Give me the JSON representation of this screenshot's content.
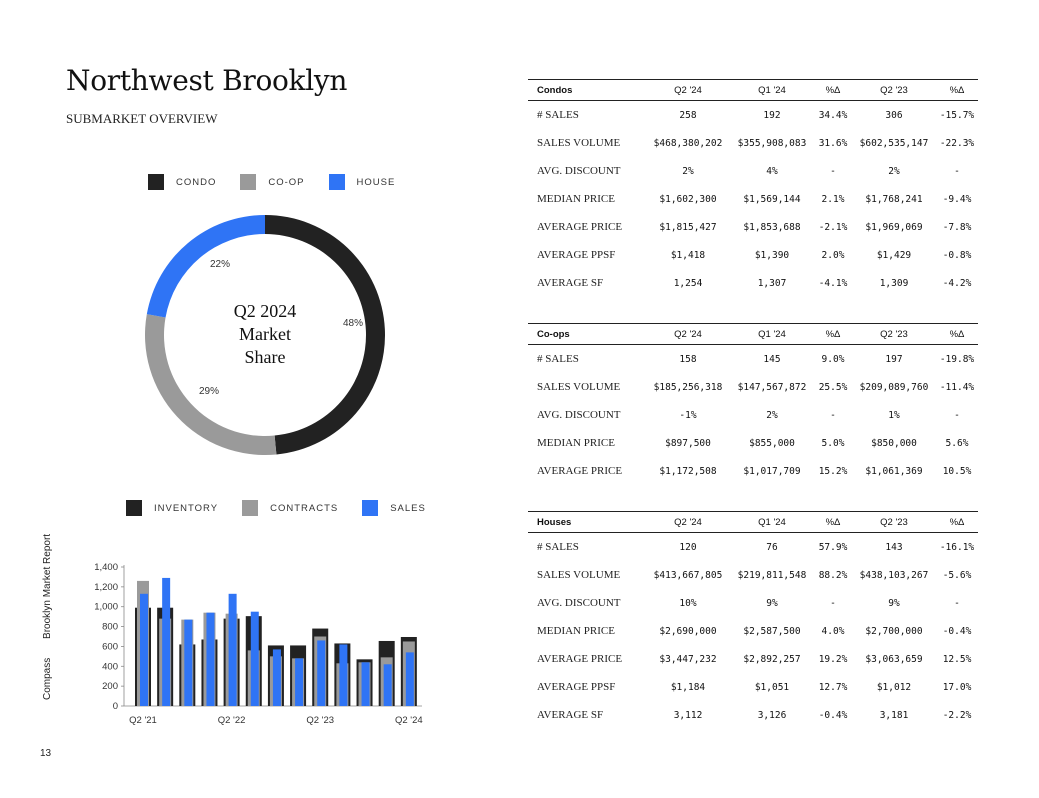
{
  "page": {
    "title": "Northwest Brooklyn",
    "subtitle": "SUBMARKET OVERVIEW",
    "page_number": "13",
    "side_brand": "Compass",
    "side_report": "Brooklyn Market Report"
  },
  "colors": {
    "condo": "#222222",
    "coop": "#9a9a9a",
    "house": "#2f74f5"
  },
  "pie_legend": [
    "CONDO",
    "CO-OP",
    "HOUSE"
  ],
  "bar_legend": [
    "INVENTORY",
    "CONTRACTS",
    "SALES"
  ],
  "chart_data": [
    {
      "type": "pie",
      "title": "Q2 2024 Market Share",
      "title_lines": [
        "Q2 2024",
        "Market",
        "Share"
      ],
      "categories": [
        "CONDO",
        "CO-OP",
        "HOUSE"
      ],
      "values": [
        48,
        29,
        22
      ],
      "labels": [
        "48%",
        "29%",
        "22%"
      ]
    },
    {
      "type": "bar",
      "categories": [
        "Q2 '21",
        "Q3 '21",
        "Q4 '21",
        "Q1 '22",
        "Q2 '22",
        "Q3 '22",
        "Q4 '22",
        "Q1 '23",
        "Q2 '23",
        "Q3 '23",
        "Q4 '23",
        "Q1 '24",
        "Q2 '24"
      ],
      "xtick_labels": [
        "Q2 '21",
        "Q2 '22",
        "Q2 '23",
        "Q2 '24"
      ],
      "ylim": [
        0,
        1400
      ],
      "yticks": [
        "0",
        "200",
        "400",
        "600",
        "800",
        "1,000",
        "1,200",
        "1,400"
      ],
      "series": [
        {
          "name": "INVENTORY",
          "values": [
            990,
            990,
            620,
            670,
            880,
            905,
            610,
            610,
            780,
            630,
            470,
            655,
            695
          ]
        },
        {
          "name": "CONTRACTS",
          "values": [
            1260,
            880,
            870,
            940,
            930,
            560,
            500,
            480,
            700,
            430,
            440,
            490,
            650
          ]
        },
        {
          "name": "SALES",
          "values": [
            1130,
            1290,
            870,
            940,
            1130,
            950,
            570,
            480,
            660,
            620,
            440,
            420,
            540
          ]
        }
      ]
    }
  ],
  "tables": [
    {
      "name": "Condos",
      "columns": [
        "Q2 '24",
        "Q1 '24",
        "%Δ",
        "Q2 '23",
        "%Δ"
      ],
      "rows": [
        [
          "# SALES",
          "258",
          "192",
          "34.4%",
          "306",
          "-15.7%"
        ],
        [
          "SALES VOLUME",
          "$468,380,202",
          "$355,908,083",
          "31.6%",
          "$602,535,147",
          "-22.3%"
        ],
        [
          "AVG. DISCOUNT",
          "2%",
          "4%",
          "-",
          "2%",
          "-"
        ],
        [
          "MEDIAN PRICE",
          "$1,602,300",
          "$1,569,144",
          "2.1%",
          "$1,768,241",
          "-9.4%"
        ],
        [
          "AVERAGE PRICE",
          "$1,815,427",
          "$1,853,688",
          "-2.1%",
          "$1,969,069",
          "-7.8%"
        ],
        [
          "AVERAGE PPSF",
          "$1,418",
          "$1,390",
          "2.0%",
          "$1,429",
          "-0.8%"
        ],
        [
          "AVERAGE SF",
          "1,254",
          "1,307",
          "-4.1%",
          "1,309",
          "-4.2%"
        ]
      ]
    },
    {
      "name": "Co-ops",
      "columns": [
        "Q2 '24",
        "Q1 '24",
        "%Δ",
        "Q2 '23",
        "%Δ"
      ],
      "rows": [
        [
          "# SALES",
          "158",
          "145",
          "9.0%",
          "197",
          "-19.8%"
        ],
        [
          "SALES VOLUME",
          "$185,256,318",
          "$147,567,872",
          "25.5%",
          "$209,089,760",
          "-11.4%"
        ],
        [
          "AVG. DISCOUNT",
          "-1%",
          "2%",
          "-",
          "1%",
          "-"
        ],
        [
          "MEDIAN PRICE",
          "$897,500",
          "$855,000",
          "5.0%",
          "$850,000",
          "5.6%"
        ],
        [
          "AVERAGE PRICE",
          "$1,172,508",
          "$1,017,709",
          "15.2%",
          "$1,061,369",
          "10.5%"
        ]
      ]
    },
    {
      "name": "Houses",
      "columns": [
        "Q2 '24",
        "Q1 '24",
        "%Δ",
        "Q2 '23",
        "%Δ"
      ],
      "rows": [
        [
          "# SALES",
          "120",
          "76",
          "57.9%",
          "143",
          "-16.1%"
        ],
        [
          "SALES VOLUME",
          "$413,667,805",
          "$219,811,548",
          "88.2%",
          "$438,103,267",
          "-5.6%"
        ],
        [
          "AVG. DISCOUNT",
          "10%",
          "9%",
          "-",
          "9%",
          "-"
        ],
        [
          "MEDIAN PRICE",
          "$2,690,000",
          "$2,587,500",
          "4.0%",
          "$2,700,000",
          "-0.4%"
        ],
        [
          "AVERAGE PRICE",
          "$3,447,232",
          "$2,892,257",
          "19.2%",
          "$3,063,659",
          "12.5%"
        ],
        [
          "AVERAGE PPSF",
          "$1,184",
          "$1,051",
          "12.7%",
          "$1,012",
          "17.0%"
        ],
        [
          "AVERAGE SF",
          "3,112",
          "3,126",
          "-0.4%",
          "3,181",
          "-2.2%"
        ]
      ]
    }
  ]
}
